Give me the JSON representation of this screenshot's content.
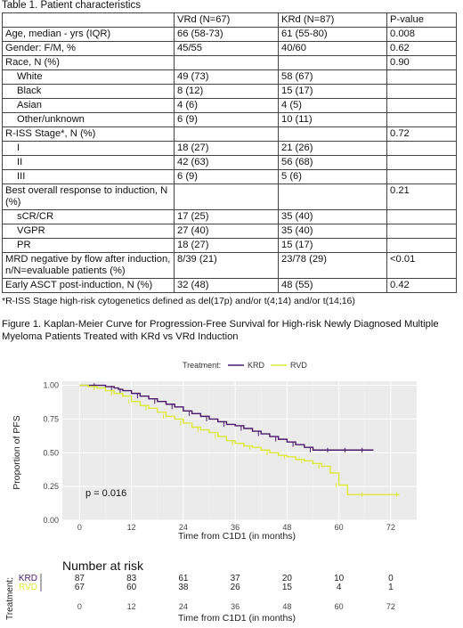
{
  "table": {
    "caption": "Table 1. Patient characteristics",
    "header": [
      "",
      "VRd (N=67)",
      "KRd (N=87)",
      "P-value"
    ],
    "rows": [
      {
        "label": "Age, median - yrs (IQR)",
        "indent": false,
        "vrd": "66 (58-73)",
        "krd": "61 (55-80)",
        "p": "0.008"
      },
      {
        "label": "Gender: F/M, %",
        "indent": false,
        "vrd": "45/55",
        "krd": "40/60",
        "p": "0.62"
      },
      {
        "label": "Race, N (%)",
        "indent": false,
        "vrd": "",
        "krd": "",
        "p": "0.90"
      },
      {
        "label": "White",
        "indent": true,
        "vrd": "49 (73)",
        "krd": "58 (67)",
        "p": ""
      },
      {
        "label": "Black",
        "indent": true,
        "vrd": "8 (12)",
        "krd": "15 (17)",
        "p": ""
      },
      {
        "label": "Asian",
        "indent": true,
        "vrd": "4 (6)",
        "krd": "4 (5)",
        "p": ""
      },
      {
        "label": "Other/unknown",
        "indent": true,
        "vrd": "6 (9)",
        "krd": "10 (11)",
        "p": ""
      },
      {
        "label": "R-ISS Stage*, N (%)",
        "indent": false,
        "vrd": "",
        "krd": "",
        "p": "0.72"
      },
      {
        "label": "I",
        "indent": true,
        "vrd": "18 (27)",
        "krd": "21 (26)",
        "p": ""
      },
      {
        "label": "II",
        "indent": true,
        "vrd": "42 (63)",
        "krd": "56 (68)",
        "p": ""
      },
      {
        "label": "III",
        "indent": true,
        "vrd": "6 (9)",
        "krd": "5 (6)",
        "p": ""
      },
      {
        "label": "Best overall response to induction, N (%)",
        "indent": false,
        "vrd": "",
        "krd": "",
        "p": "0.21"
      },
      {
        "label": "sCR/CR",
        "indent": true,
        "vrd": "17 (25)",
        "krd": "35 (40)",
        "p": ""
      },
      {
        "label": "VGPR",
        "indent": true,
        "vrd": "27 (40)",
        "krd": "35 (40)",
        "p": ""
      },
      {
        "label": "PR",
        "indent": true,
        "vrd": "18 (27)",
        "krd": "15 (17)",
        "p": ""
      },
      {
        "label": "MRD negative by flow after induction, n/N=evaluable patients (%)",
        "indent": false,
        "vrd": "8/39 (21)",
        "krd": "23/78 (29)",
        "p": "<0.01"
      },
      {
        "label": "Early ASCT post-induction, N (%)",
        "indent": false,
        "vrd": "32 (48)",
        "krd": "48 (55)",
        "p": "0.42"
      }
    ],
    "footnote": "*R-ISS Stage high-risk cytogenetics defined as del(17p) and/or t(4;14) and/or t(14;16)"
  },
  "figure_caption": "Figure 1. Kaplan-Meier Curve for Progression-Free Survival for High-risk Newly Diagnosed Multiple Myeloma Patients Treated with KRd vs VRd Induction",
  "chart_data": {
    "type": "line",
    "subtype": "kaplan-meier step",
    "legend_title": "Treatment:",
    "legend_position": "top",
    "xlabel": "Time from C1D1 (in months)",
    "ylabel": "Proportion of PFS",
    "xlim": [
      -4,
      78
    ],
    "ylim": [
      0,
      1.03
    ],
    "x_ticks": [
      0,
      12,
      24,
      36,
      48,
      60,
      72
    ],
    "y_ticks": [
      "0.00",
      "0.25",
      "0.50",
      "0.75",
      "1.00"
    ],
    "grid": true,
    "annotation": "p = 0.016",
    "series": [
      {
        "name": "KRD",
        "color": "#4b1a6b",
        "x": [
          0,
          2,
          4,
          6,
          8,
          9,
          10,
          12,
          14,
          16,
          18,
          20,
          22,
          24,
          26,
          28,
          30,
          32,
          34,
          36,
          38,
          40,
          42,
          44,
          46,
          48,
          50,
          52,
          54,
          56,
          58,
          60,
          62,
          64,
          66,
          68
        ],
        "y": [
          1.0,
          1.0,
          1.0,
          0.99,
          0.98,
          0.97,
          0.96,
          0.94,
          0.92,
          0.9,
          0.88,
          0.86,
          0.84,
          0.81,
          0.79,
          0.77,
          0.75,
          0.73,
          0.71,
          0.7,
          0.68,
          0.66,
          0.64,
          0.62,
          0.6,
          0.58,
          0.56,
          0.54,
          0.52,
          0.52,
          0.52,
          0.52,
          0.52,
          0.52,
          0.52,
          0.52
        ]
      },
      {
        "name": "RVD",
        "color": "#dcea3c",
        "x": [
          0,
          2,
          4,
          6,
          8,
          10,
          12,
          14,
          16,
          18,
          20,
          22,
          24,
          26,
          28,
          30,
          32,
          34,
          36,
          38,
          40,
          42,
          44,
          46,
          48,
          50,
          52,
          54,
          56,
          58,
          60,
          62,
          66,
          70,
          74
        ],
        "y": [
          1.0,
          0.99,
          0.98,
          0.96,
          0.94,
          0.92,
          0.88,
          0.85,
          0.83,
          0.8,
          0.77,
          0.75,
          0.72,
          0.69,
          0.67,
          0.65,
          0.62,
          0.59,
          0.57,
          0.55,
          0.54,
          0.52,
          0.5,
          0.48,
          0.47,
          0.45,
          0.44,
          0.42,
          0.4,
          0.35,
          0.26,
          0.19,
          0.19,
          0.19,
          0.19
        ]
      }
    ],
    "risk_table": {
      "title": "Number at risk",
      "y_axis_label": "Treatment:",
      "x_ticks": [
        0,
        12,
        24,
        36,
        48,
        60,
        72
      ],
      "xlabel": "Time from C1D1 (in months)",
      "rows": [
        {
          "name": "KRD",
          "color": "#4b1a6b",
          "values": [
            "87",
            "83",
            "61",
            "37",
            "20",
            "10",
            "0"
          ]
        },
        {
          "name": "RVD",
          "color": "#dcea3c",
          "values": [
            "67",
            "60",
            "38",
            "26",
            "15",
            "4",
            "1"
          ]
        }
      ]
    }
  }
}
